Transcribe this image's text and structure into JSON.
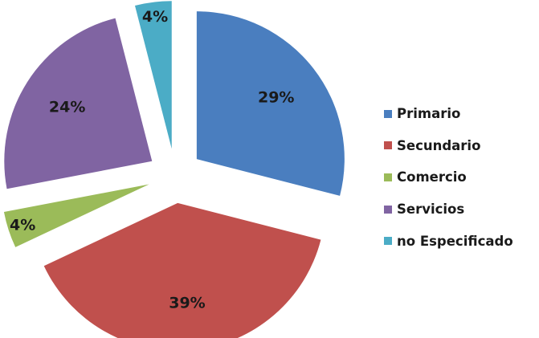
{
  "chart_data": {
    "type": "pie",
    "exploded": true,
    "categories": [
      "Primario",
      "Secundario",
      "Comercio",
      "Servicios",
      "no Especificado"
    ],
    "values": [
      29,
      39,
      4,
      24,
      4
    ],
    "labels": [
      "29%",
      "39%",
      "4%",
      "24%",
      "4%"
    ],
    "colors": [
      "#4a7ebf",
      "#c0504d",
      "#9bbb59",
      "#8064a2",
      "#4bacc6"
    ],
    "legend": {
      "position": "right",
      "entries": [
        "Primario",
        "Secundario",
        "Comercio",
        "Servicios",
        "no Especificado"
      ]
    }
  }
}
